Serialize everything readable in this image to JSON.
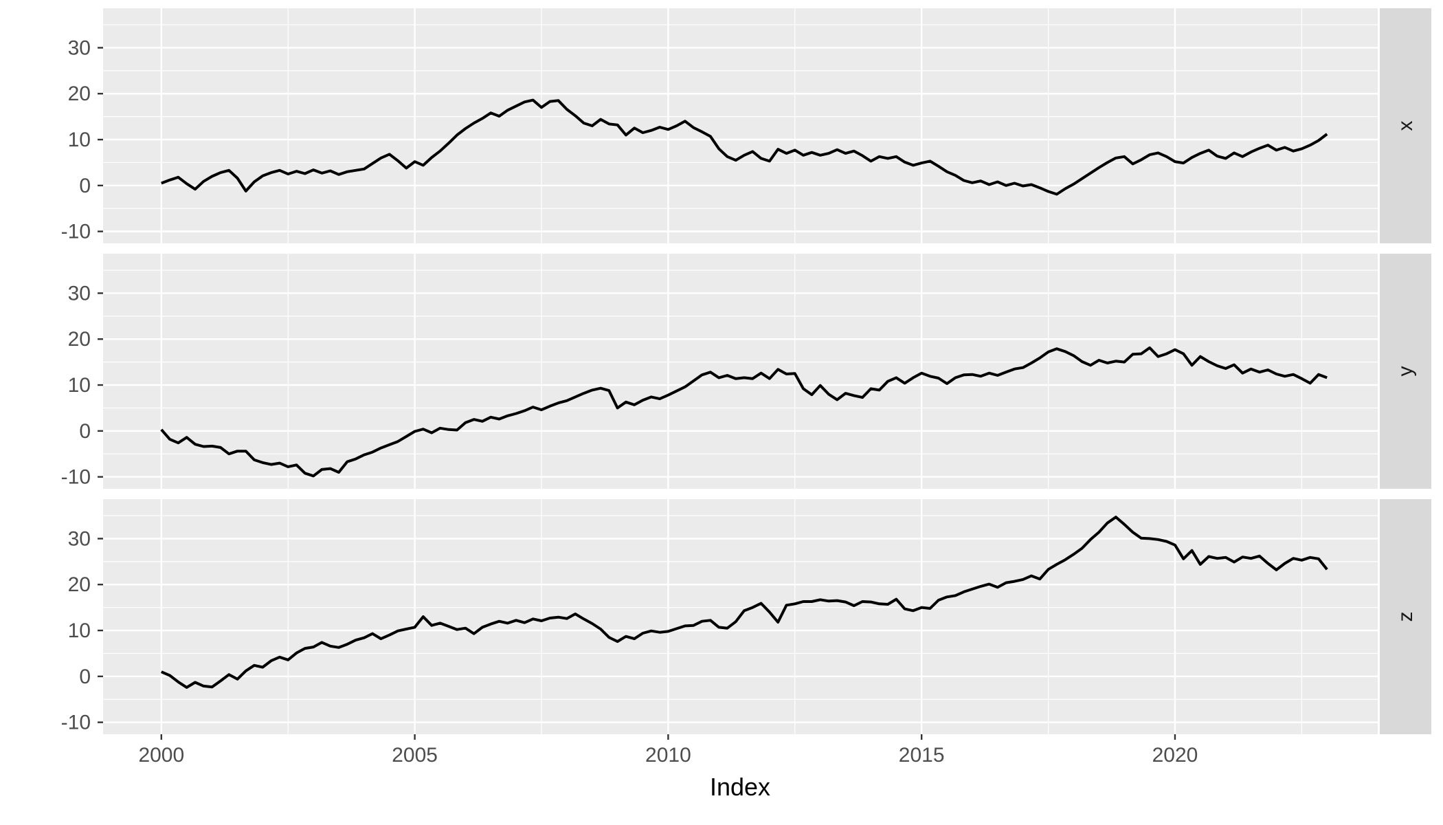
{
  "style": {
    "panel_bg": "#EBEBEB",
    "strip_bg": "#D9D9D9",
    "grid_color": "#FFFFFF",
    "line_color": "#000000",
    "tick_mark_color": "#333333",
    "tick_label_color": "#4D4D4D",
    "strip_label_color": "#1A1A1A",
    "axis_title_color": "#000000",
    "background": "#FFFFFF"
  },
  "chart_data": {
    "type": "line",
    "title": "",
    "xlabel": "Index",
    "ylabel": "",
    "legend": "none",
    "grid": "on",
    "facet_layout": "rows-right-strips",
    "x_start": 2000,
    "x_step": 0.1666667,
    "xlim": [
      1998.85,
      2024.0
    ],
    "ylim": [
      -12.6,
      38.6
    ],
    "x_ticks": [
      2000,
      2005,
      2010,
      2015,
      2020
    ],
    "x_minor_ticks": [
      2002.5,
      2007.5,
      2012.5,
      2017.5,
      2022.5
    ],
    "y_ticks": [
      30,
      20,
      10,
      0,
      -10
    ],
    "y_minor_ticks": [
      35,
      25,
      15,
      5,
      -5
    ],
    "facets": [
      {
        "label": "x",
        "values": [
          0.5,
          1.2,
          1.8,
          0.4,
          -0.8,
          0.9,
          2.0,
          2.8,
          3.3,
          1.6,
          -1.2,
          0.8,
          2.1,
          2.8,
          3.3,
          2.5,
          3.1,
          2.6,
          3.4,
          2.7,
          3.2,
          2.4,
          3.0,
          3.3,
          3.6,
          4.8,
          6.0,
          6.8,
          5.4,
          3.8,
          5.2,
          4.4,
          6.1,
          7.5,
          9.2,
          11.0,
          12.4,
          13.6,
          14.6,
          15.8,
          15.1,
          16.4,
          17.3,
          18.2,
          18.6,
          17.0,
          18.3,
          18.5,
          16.6,
          15.2,
          13.6,
          13.0,
          14.4,
          13.4,
          13.2,
          11.0,
          12.5,
          11.5,
          12.0,
          12.7,
          12.2,
          13.0,
          14.0,
          12.6,
          11.7,
          10.7,
          8.0,
          6.3,
          5.5,
          6.6,
          7.4,
          5.9,
          5.3,
          7.9,
          7.0,
          7.7,
          6.6,
          7.2,
          6.6,
          7.0,
          7.8,
          7.0,
          7.5,
          6.5,
          5.3,
          6.3,
          5.9,
          6.3,
          5.1,
          4.4,
          4.9,
          5.3,
          4.2,
          3.0,
          2.2,
          1.1,
          0.6,
          1.0,
          0.2,
          0.8,
          0.0,
          0.5,
          -0.1,
          0.2,
          -0.5,
          -1.3,
          -1.9,
          -0.7,
          0.3,
          1.5,
          2.7,
          3.9,
          5.0,
          6.0,
          6.3,
          4.7,
          5.6,
          6.7,
          7.1,
          6.3,
          5.2,
          4.9,
          6.1,
          7.0,
          7.7,
          6.4,
          5.9,
          7.1,
          6.3,
          7.3,
          8.1,
          8.8,
          7.7,
          8.3,
          7.5,
          8.0,
          8.8,
          9.8,
          11.2
        ]
      },
      {
        "label": "y",
        "values": [
          0.3,
          -1.8,
          -2.6,
          -1.4,
          -2.9,
          -3.4,
          -3.3,
          -3.6,
          -5.0,
          -4.4,
          -4.4,
          -6.3,
          -6.9,
          -7.3,
          -7.0,
          -7.8,
          -7.4,
          -9.2,
          -9.8,
          -8.4,
          -8.2,
          -9.0,
          -6.7,
          -6.1,
          -5.2,
          -4.6,
          -3.7,
          -3.0,
          -2.3,
          -1.2,
          -0.1,
          0.4,
          -0.4,
          0.6,
          0.3,
          0.2,
          1.8,
          2.5,
          2.1,
          3.0,
          2.6,
          3.3,
          3.8,
          4.4,
          5.2,
          4.6,
          5.4,
          6.1,
          6.6,
          7.4,
          8.2,
          8.9,
          9.3,
          8.8,
          5.0,
          6.3,
          5.7,
          6.7,
          7.4,
          7.0,
          7.8,
          8.7,
          9.6,
          10.9,
          12.2,
          12.8,
          11.6,
          12.1,
          11.4,
          11.6,
          11.4,
          12.6,
          11.4,
          13.4,
          12.4,
          12.5,
          9.2,
          7.9,
          9.9,
          8.0,
          6.8,
          8.2,
          7.7,
          7.3,
          9.2,
          8.9,
          10.8,
          11.6,
          10.4,
          11.6,
          12.6,
          11.9,
          11.5,
          10.3,
          11.6,
          12.2,
          12.3,
          11.9,
          12.6,
          12.1,
          12.8,
          13.5,
          13.8,
          14.8,
          15.9,
          17.2,
          17.9,
          17.3,
          16.4,
          15.1,
          14.3,
          15.4,
          14.8,
          15.2,
          15.0,
          16.7,
          16.8,
          18.1,
          16.2,
          16.8,
          17.7,
          16.8,
          14.3,
          16.2,
          15.1,
          14.2,
          13.6,
          14.4,
          12.6,
          13.5,
          12.8,
          13.3,
          12.4,
          11.9,
          12.3,
          11.4,
          10.4,
          12.3,
          11.6
        ]
      },
      {
        "label": "z",
        "values": [
          1.0,
          0.2,
          -1.2,
          -2.4,
          -1.3,
          -2.1,
          -2.3,
          -1.0,
          0.4,
          -0.6,
          1.2,
          2.4,
          2.0,
          3.4,
          4.2,
          3.6,
          5.1,
          6.1,
          6.4,
          7.4,
          6.6,
          6.3,
          7.0,
          7.9,
          8.4,
          9.3,
          8.2,
          9.0,
          9.9,
          10.3,
          10.7,
          13.0,
          11.1,
          11.6,
          10.9,
          10.2,
          10.5,
          9.3,
          10.7,
          11.4,
          12.0,
          11.6,
          12.2,
          11.7,
          12.5,
          12.1,
          12.7,
          12.9,
          12.6,
          13.6,
          12.5,
          11.5,
          10.3,
          8.5,
          7.6,
          8.7,
          8.2,
          9.4,
          9.9,
          9.6,
          9.8,
          10.4,
          11.0,
          11.1,
          12.0,
          12.2,
          10.7,
          10.5,
          11.9,
          14.3,
          15.0,
          15.9,
          14.0,
          11.8,
          15.5,
          15.8,
          16.3,
          16.3,
          16.7,
          16.4,
          16.5,
          16.2,
          15.4,
          16.3,
          16.2,
          15.8,
          15.7,
          16.8,
          14.7,
          14.3,
          15.0,
          14.8,
          16.6,
          17.3,
          17.6,
          18.4,
          19.0,
          19.6,
          20.1,
          19.4,
          20.4,
          20.7,
          21.1,
          21.9,
          21.2,
          23.3,
          24.4,
          25.4,
          26.6,
          27.9,
          29.8,
          31.4,
          33.4,
          34.7,
          33.1,
          31.4,
          30.1,
          30.0,
          29.8,
          29.4,
          28.6,
          25.6,
          27.4,
          24.4,
          26.1,
          25.7,
          25.9,
          24.9,
          26.0,
          25.7,
          26.2,
          24.6,
          23.2,
          24.6,
          25.7,
          25.3,
          25.9,
          25.6,
          23.3
        ]
      }
    ]
  }
}
